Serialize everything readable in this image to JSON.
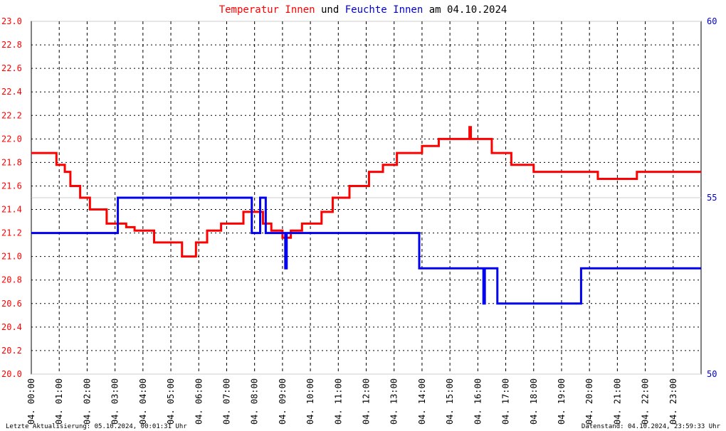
{
  "chart_data": {
    "type": "line",
    "drawstyle": "steps-post",
    "title_parts": [
      {
        "text": "Temperatur Innen",
        "color": "#ff0000"
      },
      {
        "text": "und",
        "color": "#000000"
      },
      {
        "text": "Feuchte Innen",
        "color": "#0000cc"
      },
      {
        "text": "am 04.10.2024",
        "color": "#000000"
      }
    ],
    "footer_left": "Letzte Aktualisierung: 05.10.2024, 00:01:31 Uhr",
    "footer_right": "Datenstand: 04.10.2024, 23:59:33 Uhr",
    "xlim": [
      0,
      24
    ],
    "xticks": [
      {
        "value": 0,
        "label": "04. 00:00"
      },
      {
        "value": 1,
        "label": "04. 01:00"
      },
      {
        "value": 2,
        "label": "04. 02:00"
      },
      {
        "value": 3,
        "label": "04. 03:00"
      },
      {
        "value": 4,
        "label": "04. 04:00"
      },
      {
        "value": 5,
        "label": "04. 05:00"
      },
      {
        "value": 6,
        "label": "04. 06:00"
      },
      {
        "value": 7,
        "label": "04. 07:00"
      },
      {
        "value": 8,
        "label": "04. 08:00"
      },
      {
        "value": 9,
        "label": "04. 09:00"
      },
      {
        "value": 10,
        "label": "04. 10:00"
      },
      {
        "value": 11,
        "label": "04. 11:00"
      },
      {
        "value": 12,
        "label": "04. 12:00"
      },
      {
        "value": 13,
        "label": "04. 13:00"
      },
      {
        "value": 14,
        "label": "04. 14:00"
      },
      {
        "value": 15,
        "label": "04. 15:00"
      },
      {
        "value": 16,
        "label": "04. 16:00"
      },
      {
        "value": 17,
        "label": "04. 17:00"
      },
      {
        "value": 18,
        "label": "04. 18:00"
      },
      {
        "value": 19,
        "label": "04. 19:00"
      },
      {
        "value": 20,
        "label": "04. 20:00"
      },
      {
        "value": 21,
        "label": "04. 21:00"
      },
      {
        "value": 22,
        "label": "04. 22:00"
      },
      {
        "value": 23,
        "label": "04. 23:00"
      }
    ],
    "ylim": [
      20,
      23
    ],
    "yticks": [
      {
        "value": 20,
        "label": "20.0"
      },
      20.2,
      20.4,
      20.6,
      20.8,
      {
        "value": 21,
        "label": "21.0"
      },
      21.2,
      21.4,
      21.6,
      21.8,
      {
        "value": 22,
        "label": "22.0"
      },
      22.2,
      22.4,
      22.6,
      22.8,
      {
        "value": 23,
        "label": "23.0"
      }
    ],
    "y2lim": [
      50,
      60
    ],
    "y2ticks": [
      50,
      55,
      60
    ],
    "grid": true,
    "series": [
      {
        "name": "Temperatur Innen",
        "color": "#ff0000",
        "axis": "y",
        "x": [
          0,
          0.9,
          1.2,
          1.4,
          1.75,
          2.1,
          2.7,
          3.4,
          3.7,
          4.4,
          5.4,
          5.9,
          6.3,
          6.8,
          7.6,
          8.3,
          8.6,
          9.0,
          9.3,
          9.7,
          10.4,
          10.8,
          11.4,
          12.1,
          12.6,
          13.1,
          14.0,
          14.6,
          15.7,
          15.75,
          16.5,
          17.2,
          18.0,
          20.3,
          21.7,
          24
        ],
        "values": [
          21.88,
          21.78,
          21.72,
          21.6,
          21.5,
          21.4,
          21.28,
          21.25,
          21.22,
          21.12,
          21.0,
          21.12,
          21.22,
          21.28,
          21.38,
          21.28,
          21.22,
          21.16,
          21.22,
          21.28,
          21.38,
          21.5,
          21.6,
          21.72,
          21.78,
          21.88,
          21.94,
          22.0,
          22.1,
          22.0,
          21.88,
          21.78,
          21.72,
          21.66,
          21.72,
          21.72
        ]
      },
      {
        "name": "Feuchte Innen",
        "color": "#0000ee",
        "axis": "y2",
        "x": [
          0,
          3.1,
          7.9,
          8.2,
          8.4,
          9.1,
          9.15,
          13.9,
          16.2,
          16.25,
          16.7,
          19.7,
          24
        ],
        "values": [
          54,
          55,
          54,
          55,
          54,
          53,
          54,
          53,
          52,
          53,
          52,
          53,
          53
        ]
      }
    ]
  }
}
